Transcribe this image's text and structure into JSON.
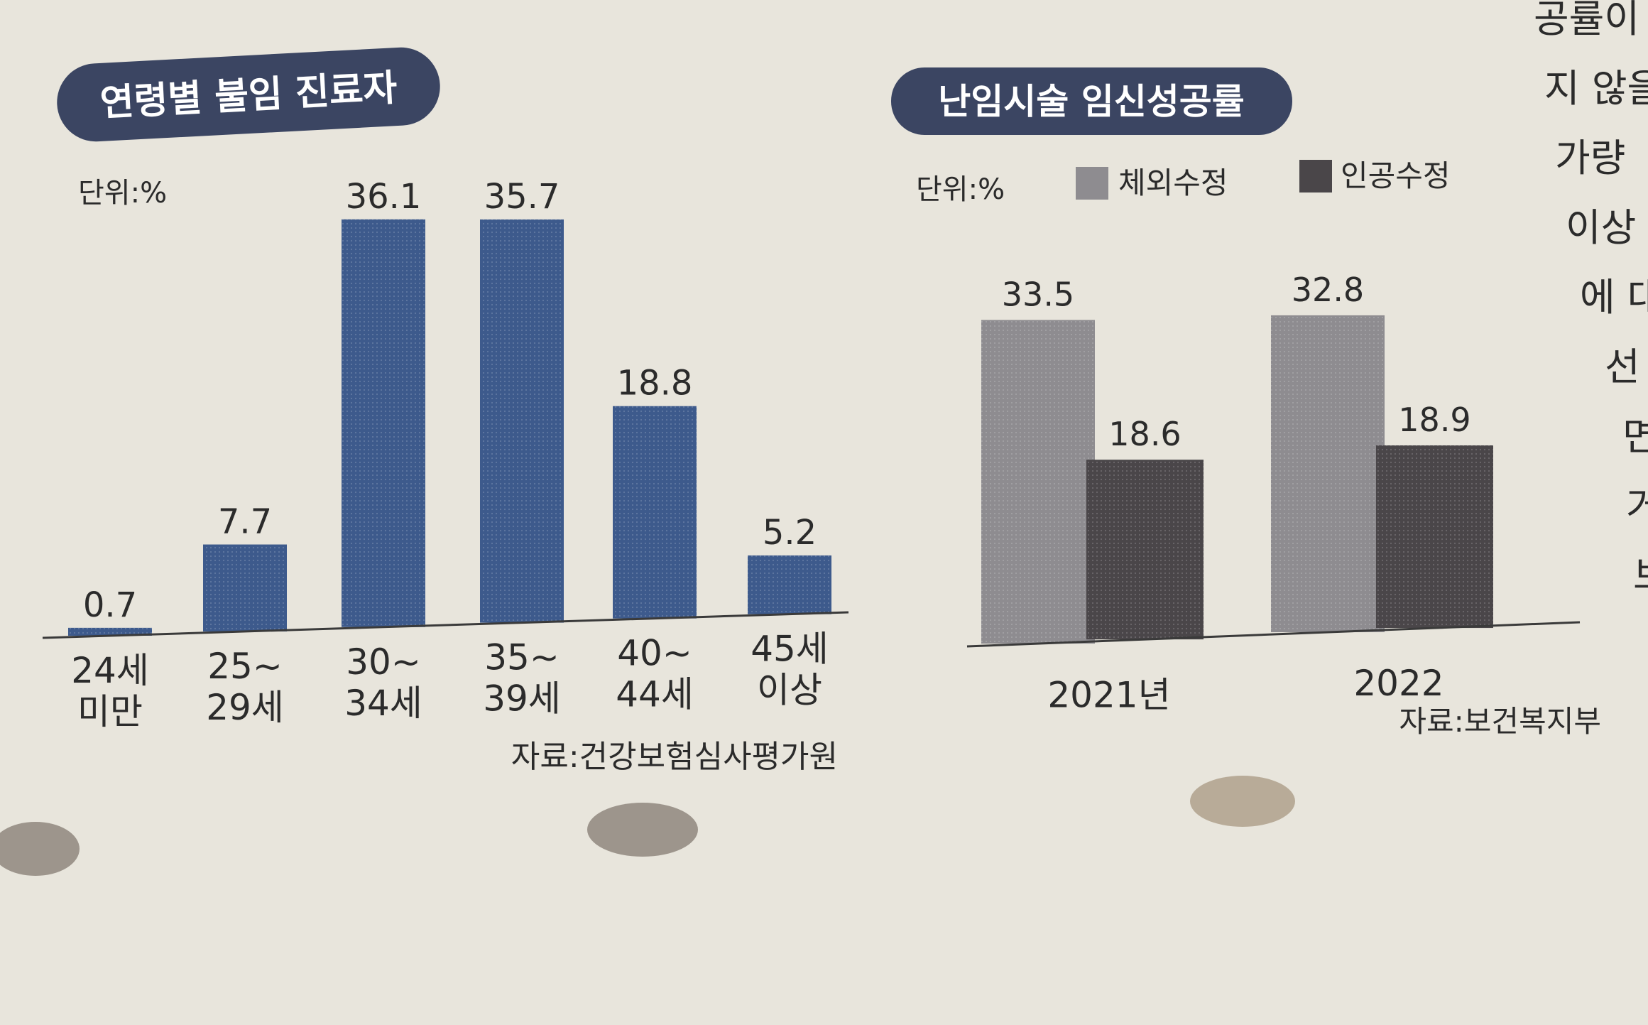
{
  "chart_data": [
    {
      "type": "bar",
      "title": "연령별 불임 진료자",
      "unit_label": "단위:%",
      "categories": [
        [
          "24세",
          "미만"
        ],
        [
          "25~",
          "29세"
        ],
        [
          "30~",
          "34세"
        ],
        [
          "35~",
          "39세"
        ],
        [
          "40~",
          "44세"
        ],
        [
          "45세",
          "이상"
        ]
      ],
      "values": [
        0.7,
        7.7,
        36.1,
        35.7,
        18.8,
        5.2
      ],
      "value_labels": [
        "0.7",
        "7.7",
        "36.1",
        "35.7",
        "18.8",
        "5.2"
      ],
      "color": "#3d5a8c",
      "source": "자료:건강보험심사평가원",
      "ylim": [
        0,
        40
      ],
      "grid": false
    },
    {
      "type": "bar",
      "title": "난임시술 임신성공률",
      "unit_label": "단위:%",
      "categories": [
        "2021년",
        "2022"
      ],
      "series": [
        {
          "name": "체외수정",
          "values": [
            33.5,
            32.8
          ],
          "value_labels": [
            "33.5",
            "32.8"
          ],
          "color": "#8e8c90"
        },
        {
          "name": "인공수정",
          "values": [
            18.6,
            18.9
          ],
          "value_labels": [
            "18.6",
            "18.9"
          ],
          "color": "#4a4649"
        }
      ],
      "source": "자료:보건복지부",
      "ylim": [
        0,
        40
      ],
      "legend": "top",
      "grid": false
    }
  ],
  "side_text": [
    "공률이",
    "지 않을",
    "가량",
    "이상",
    "에 대",
    "선",
    "면",
    "거",
    "보"
  ]
}
